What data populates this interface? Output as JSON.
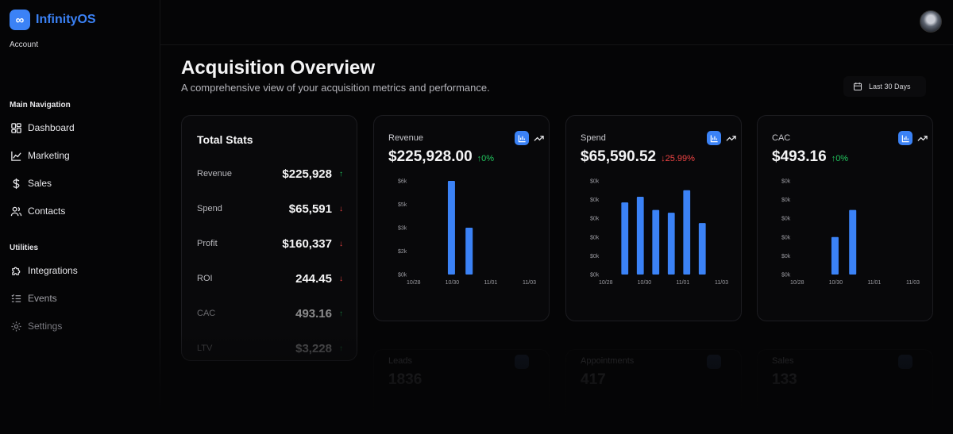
{
  "app": {
    "name": "InfinityOS",
    "account_label": "Account"
  },
  "sidebar": {
    "main_nav_label": "Main Navigation",
    "main_items": [
      {
        "label": "Dashboard",
        "icon": "dashboard-icon"
      },
      {
        "label": "Marketing",
        "icon": "chart-line-icon"
      },
      {
        "label": "Sales",
        "icon": "dollar-icon"
      },
      {
        "label": "Contacts",
        "icon": "users-icon"
      }
    ],
    "utilities_label": "Utilities",
    "utility_items": [
      {
        "label": "Integrations",
        "icon": "puzzle-icon"
      },
      {
        "label": "Events",
        "icon": "list-icon"
      },
      {
        "label": "Settings",
        "icon": "gear-icon"
      }
    ]
  },
  "header": {
    "title": "Acquisition Overview",
    "subtitle": "A comprehensive view of your acquisition metrics and performance.",
    "date_range": "Last 30 Days"
  },
  "total_stats": {
    "title": "Total Stats",
    "rows": [
      {
        "label": "Revenue",
        "value": "$225,928",
        "trend": "up"
      },
      {
        "label": "Spend",
        "value": "$65,591",
        "trend": "down"
      },
      {
        "label": "Profit",
        "value": "$160,337",
        "trend": "down"
      },
      {
        "label": "ROI",
        "value": "244.45",
        "trend": "down"
      },
      {
        "label": "CAC",
        "value": "493.16",
        "trend": "up"
      },
      {
        "label": "LTV",
        "value": "$3,228",
        "trend": "up"
      }
    ]
  },
  "metrics": [
    {
      "label": "Revenue",
      "value": "$225,928.00",
      "change": "0%",
      "direction": "up"
    },
    {
      "label": "Spend",
      "value": "$65,590.52",
      "change": "25.99%",
      "direction": "down"
    },
    {
      "label": "CAC",
      "value": "$493.16",
      "change": "0%",
      "direction": "up"
    }
  ],
  "faded_metrics": [
    {
      "label": "Leads",
      "value": "1836"
    },
    {
      "label": "Appointments",
      "value": "417"
    },
    {
      "label": "Sales",
      "value": "133"
    }
  ],
  "colors": {
    "accent": "#3b82f6",
    "up": "#22c55e",
    "down": "#ef4444"
  },
  "chart_data": [
    {
      "type": "bar",
      "title": "Revenue",
      "x": [
        "10/28",
        "10/29",
        "10/30",
        "10/31",
        "11/01",
        "11/02",
        "11/03"
      ],
      "tick_labels_x": [
        "10/28",
        "10/30",
        "11/01",
        "11/03"
      ],
      "tick_labels_y": [
        "$0k",
        "$2k",
        "$3k",
        "$5k",
        "$6k"
      ],
      "values": [
        0,
        6000,
        3000,
        0,
        0,
        0,
        0
      ],
      "ylim": [
        0,
        6000
      ]
    },
    {
      "type": "bar",
      "title": "Spend",
      "x": [
        "10/28",
        "10/28b",
        "10/29",
        "10/30",
        "10/31",
        "11/01",
        "11/02",
        "11/03"
      ],
      "tick_labels_x": [
        "10/28",
        "10/30",
        "11/01",
        "11/03"
      ],
      "tick_labels_y": [
        "$0k",
        "$0k",
        "$0k",
        "$0k",
        "$0k",
        "$0k"
      ],
      "values": [
        0.77,
        0.83,
        0.69,
        0.66,
        0.9,
        0.55,
        0,
        0
      ],
      "ylim": [
        0,
        1
      ]
    },
    {
      "type": "bar",
      "title": "CAC",
      "x": [
        "10/28",
        "10/29",
        "10/30",
        "10/31",
        "11/01",
        "11/02",
        "11/03"
      ],
      "tick_labels_x": [
        "10/28",
        "10/30",
        "11/01",
        "11/03"
      ],
      "tick_labels_y": [
        "$0k",
        "$0k",
        "$0k",
        "$0k",
        "$0k",
        "$0k"
      ],
      "values": [
        0,
        0.4,
        0.69,
        0,
        0,
        0,
        0
      ],
      "ylim": [
        0,
        1
      ]
    }
  ]
}
